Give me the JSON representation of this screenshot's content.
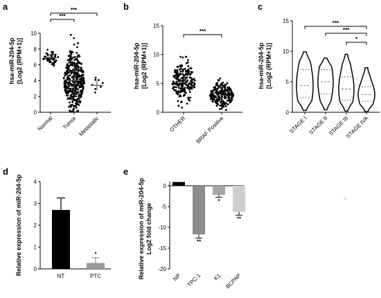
{
  "chart_data": [
    {
      "panel_label": "a",
      "type": "scatter",
      "ylabel_lines": [
        "hsa-miR-204-5p",
        "[Log2 (RPM+1)]"
      ],
      "ylim": [
        0,
        10
      ],
      "yticks": [
        0,
        2,
        4,
        6,
        8,
        10
      ],
      "categories": [
        "Normal",
        "Tumor",
        "Metastatic"
      ],
      "groups": [
        {
          "name": "Normal",
          "mean": 6.9,
          "sd": 0.5,
          "min": 5.9,
          "max": 8.2,
          "n": 55
        },
        {
          "name": "Tumor",
          "mean": 4.0,
          "sd": 1.8,
          "min": 0.1,
          "max": 9.8,
          "n": 420
        },
        {
          "name": "Metastatic",
          "mean": 3.4,
          "sd": 0.6,
          "min": 2.5,
          "max": 4.5,
          "n": 8
        }
      ],
      "significance": [
        {
          "from": 0,
          "to": 1,
          "label": "***"
        },
        {
          "from": 0,
          "to": 2,
          "label": "***"
        }
      ]
    },
    {
      "panel_label": "b",
      "type": "scatter",
      "ylabel_lines": [
        "hsa-miR-204-5p",
        "[Log2 (RPM+1)]"
      ],
      "ylim": [
        0,
        15
      ],
      "yticks": [
        0,
        5,
        10,
        15
      ],
      "categories": [
        "OTHER",
        "BRAF Positive"
      ],
      "groups": [
        {
          "name": "OTHER",
          "mean": 5.2,
          "sd": 1.8,
          "min": 0.8,
          "max": 9.6,
          "n": 210
        },
        {
          "name": "BRAF Positive",
          "mean": 2.9,
          "sd": 1.1,
          "min": 0.4,
          "max": 6.8,
          "n": 220
        }
      ],
      "significance": [
        {
          "from": 0,
          "to": 1,
          "label": "***"
        }
      ]
    },
    {
      "panel_label": "c",
      "type": "violin",
      "ylabel_lines": [
        "hsa-miR-204-5p",
        "[Log2 (RPM+1)]"
      ],
      "ylim": [
        0,
        15
      ],
      "yticks": [
        0,
        5,
        10,
        15
      ],
      "categories": [
        "STAGE I",
        "STAGE II",
        "STAGE III",
        "STAGE IVA"
      ],
      "groups": [
        {
          "name": "STAGE I",
          "min": 0.3,
          "q1": 2.4,
          "median": 4.4,
          "q3": 7.0,
          "max": 9.9
        },
        {
          "name": "STAGE II",
          "min": 0.4,
          "q1": 3.0,
          "median": 5.0,
          "q3": 7.0,
          "max": 8.9
        },
        {
          "name": "STAGE III",
          "min": 0.2,
          "q1": 2.0,
          "median": 3.8,
          "q3": 5.8,
          "max": 9.5
        },
        {
          "name": "STAGE IVA",
          "min": 0.1,
          "q1": 1.8,
          "median": 2.9,
          "q3": 4.2,
          "max": 7.3
        }
      ],
      "significance": [
        {
          "from": 0,
          "to": 3,
          "label": "***"
        },
        {
          "from": 1,
          "to": 3,
          "label": "***"
        },
        {
          "from": 2,
          "to": 3,
          "label": "*"
        }
      ]
    },
    {
      "panel_label": "d",
      "type": "bar",
      "ylabel": "Relative expression of miR-204-5p",
      "ylim": [
        0,
        4
      ],
      "yticks": [
        0,
        1,
        2,
        3,
        4
      ],
      "categories": [
        "NT",
        "PTC"
      ],
      "values": [
        2.7,
        0.27
      ],
      "errors": [
        0.55,
        0.25
      ],
      "colors": [
        "#000000",
        "#9a9a9a"
      ],
      "annotations": [
        "",
        "*"
      ]
    },
    {
      "panel_label": "e",
      "type": "bar",
      "ylabel_lines": [
        "Relative expression of miR-204-5p",
        "Log2 fold change"
      ],
      "ylim": [
        -20,
        0
      ],
      "yticks": [
        0,
        -5,
        -10,
        -15,
        -20
      ],
      "categories": [
        "NP",
        "TPC-1",
        "K1",
        "BCPAP"
      ],
      "values": [
        0.9,
        -11.7,
        -2.2,
        -6.3
      ],
      "errors": [
        0.0,
        0.9,
        0.6,
        0.8
      ],
      "colors": [
        "#000000",
        "#8c8c8c",
        "#a6a6a6",
        "#cfcfcf"
      ],
      "annotations": [
        "",
        "**",
        "*",
        "**"
      ]
    }
  ]
}
